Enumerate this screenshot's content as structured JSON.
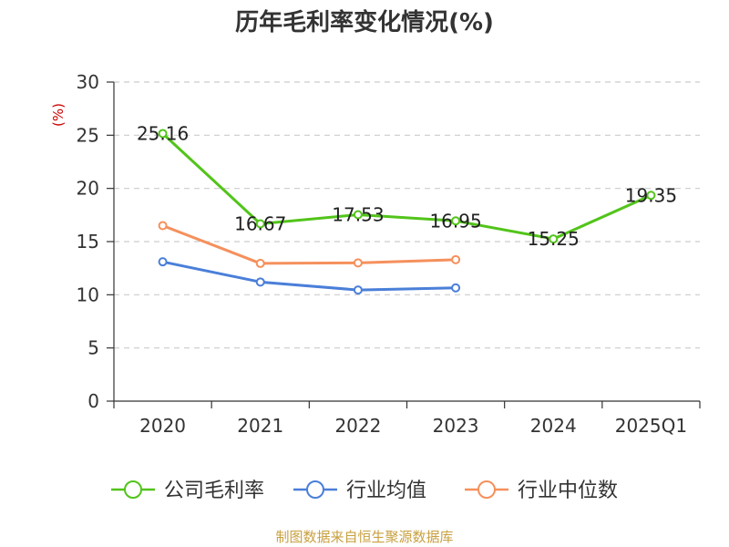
{
  "chart_data": {
    "type": "line",
    "title": "历年毛利率变化情况(%)",
    "ylabel": "(%)",
    "xlabel": "",
    "categories": [
      "2020",
      "2021",
      "2022",
      "2023",
      "2024",
      "2025Q1"
    ],
    "ylim": [
      0,
      30
    ],
    "yticks": [
      0,
      5,
      10,
      15,
      20,
      25,
      30
    ],
    "grid": true,
    "legend_position": "bottom",
    "series": [
      {
        "name": "公司毛利率",
        "color": "#52c41a",
        "values": [
          25.16,
          16.67,
          17.53,
          16.95,
          15.25,
          19.35
        ],
        "labels": [
          "25.16",
          "16.67",
          "17.53",
          "16.95",
          "15.25",
          "19.35"
        ]
      },
      {
        "name": "行业均值",
        "color": "#4a7fd9",
        "values": [
          13.1,
          11.2,
          10.45,
          10.65,
          null,
          null
        ]
      },
      {
        "name": "行业中位数",
        "color": "#f5905c",
        "values": [
          16.5,
          12.95,
          13.0,
          13.3,
          null,
          null
        ]
      }
    ]
  },
  "footer": {
    "source": "制图数据来自恒生聚源数据库"
  }
}
